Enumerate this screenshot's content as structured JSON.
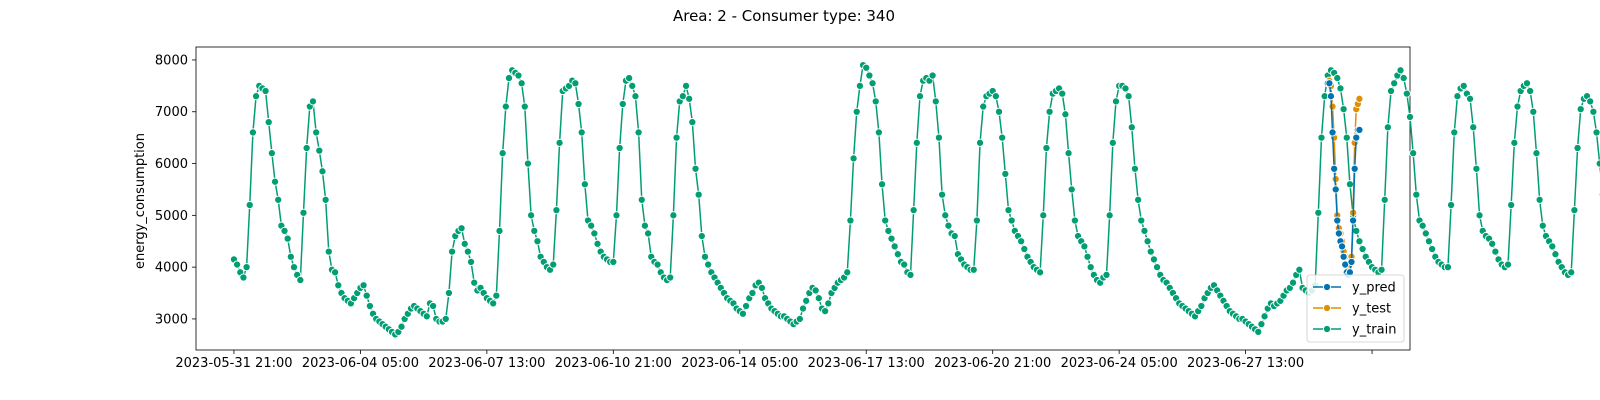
{
  "chart_data": {
    "type": "line",
    "title": "Area: 2 - Consumer type: 340",
    "xlabel": "",
    "ylabel": "energy_consumption",
    "ylim": [
      2400,
      8250
    ],
    "yticks": [
      3000,
      4000,
      5000,
      6000,
      7000,
      8000
    ],
    "xlim_hours": [
      -24,
      744
    ],
    "x_start": "2023-05-31 21:00",
    "x_unit": "hours since x_start",
    "xticks": [
      {
        "hour": 0,
        "label": "2023-05-31 21:00"
      },
      {
        "hour": 80,
        "label": "2023-06-04 05:00"
      },
      {
        "hour": 160,
        "label": "2023-06-07 13:00"
      },
      {
        "hour": 240,
        "label": "2023-06-10 21:00"
      },
      {
        "hour": 320,
        "label": "2023-06-14 05:00"
      },
      {
        "hour": 400,
        "label": "2023-06-17 13:00"
      },
      {
        "hour": 480,
        "label": "2023-06-20 21:00"
      },
      {
        "hour": 560,
        "label": "2023-06-24 05:00"
      },
      {
        "hour": 640,
        "label": "2023-06-27 13:00"
      },
      {
        "hour": 720,
        "label": ""
      }
    ],
    "grid": false,
    "legend": {
      "position": "lower-right",
      "entries": [
        "y_pred",
        "y_test",
        "y_train"
      ]
    },
    "series": [
      {
        "name": "y_train",
        "color": "#029e73",
        "x_start": 0,
        "x_step": 2,
        "values": [
          4150,
          4050,
          3900,
          3800,
          4000,
          5200,
          6600,
          7300,
          7500,
          7450,
          7400,
          6800,
          6200,
          5650,
          5300,
          4800,
          4700,
          4550,
          4200,
          4000,
          3850,
          3750,
          5050,
          6300,
          7100,
          7200,
          6600,
          6250,
          5850,
          5300,
          4300,
          3950,
          3900,
          3650,
          3500,
          3400,
          3350,
          3300,
          3400,
          3500,
          3600,
          3650,
          3450,
          3250,
          3100,
          3000,
          2950,
          2900,
          2850,
          2800,
          2750,
          2700,
          2750,
          2850,
          3000,
          3100,
          3200,
          3250,
          3200,
          3150,
          3100,
          3050,
          3300,
          3250,
          3000,
          2950,
          2950,
          3000,
          3500,
          4300,
          4600,
          4700,
          4750,
          4450,
          4300,
          4100,
          3700,
          3550,
          3600,
          3500,
          3400,
          3350,
          3300,
          3450,
          4700,
          6200,
          7100,
          7650,
          7800,
          7750,
          7700,
          7550,
          7100,
          6000,
          5000,
          4700,
          4500,
          4200,
          4100,
          4000,
          3950,
          4050,
          5100,
          6400,
          7400,
          7450,
          7500,
          7600,
          7550,
          7150,
          6600,
          5600,
          4900,
          4800,
          4650,
          4450,
          4300,
          4200,
          4150,
          4100,
          4100,
          5000,
          6300,
          7150,
          7600,
          7650,
          7500,
          7300,
          6600,
          5300,
          4800,
          4650,
          4200,
          4100,
          4050,
          3900,
          3800,
          3750,
          3800,
          5000,
          6500,
          7200,
          7300,
          7500,
          7250,
          6800,
          5900,
          5400,
          4600,
          4200,
          4050,
          3900,
          3800,
          3700,
          3600,
          3500,
          3400,
          3350,
          3300,
          3200,
          3150,
          3100,
          3250,
          3400,
          3500,
          3650,
          3700,
          3600,
          3400,
          3300,
          3200,
          3150,
          3100,
          3050,
          3050,
          3000,
          2950,
          2900,
          2950,
          3000,
          3200,
          3350,
          3500,
          3600,
          3550,
          3400,
          3200,
          3150,
          3300,
          3500,
          3600,
          3700,
          3750,
          3800,
          3900,
          4900,
          6100,
          7000,
          7500,
          7900,
          7850,
          7700,
          7550,
          7200,
          6600,
          5600,
          4900,
          4700,
          4550,
          4400,
          4250,
          4100,
          4050,
          3900,
          3850,
          5100,
          6400,
          7300,
          7600,
          7650,
          7600,
          7700,
          7200,
          6500,
          5400,
          5000,
          4800,
          4650,
          4600,
          4250,
          4150,
          4050,
          4000,
          3950,
          3950,
          4900,
          6400,
          7100,
          7300,
          7350,
          7400,
          7300,
          7000,
          6500,
          5800,
          5100,
          4900,
          4700,
          4600,
          4500,
          4350,
          4200,
          4100,
          4000,
          3950,
          3900,
          5000,
          6300,
          7000,
          7350,
          7400,
          7450,
          7350,
          6950,
          6200,
          5500,
          4900,
          4600,
          4500,
          4400,
          4200,
          4000,
          3850,
          3750,
          3700,
          3800,
          3850,
          5000,
          6400,
          7200,
          7500,
          7500,
          7450,
          7300,
          6700,
          5900,
          5300,
          4900,
          4700,
          4500,
          4300,
          4150,
          4000,
          3850,
          3750,
          3700,
          3600,
          3500,
          3400,
          3300,
          3250,
          3200,
          3150,
          3100,
          3050,
          3150,
          3250,
          3400,
          3500,
          3600,
          3650,
          3550,
          3450,
          3350,
          3250,
          3150,
          3100,
          3050,
          3000,
          3000,
          2950,
          2900,
          2850,
          2800,
          2750,
          2900,
          3050,
          3200,
          3300,
          3250,
          3300,
          3350,
          3450,
          3550,
          3600,
          3700,
          3850,
          3950,
          3600,
          3550,
          3500,
          3550,
          3650,
          5050,
          6500,
          7300,
          7700,
          7800,
          7750,
          7650,
          7450,
          7050,
          6500,
          5600,
          5000,
          4700,
          4500,
          4350,
          4200,
          4100,
          4000,
          3950,
          3900,
          3950,
          5300,
          6700,
          7400,
          7550,
          7700,
          7800,
          7650,
          7350,
          6900,
          6200,
          5400,
          4900,
          4800,
          4650,
          4500,
          4350,
          4200,
          4100,
          4050,
          4000,
          4000,
          5200,
          6600,
          7300,
          7450,
          7500,
          7350,
          7250,
          6700,
          5900,
          5000,
          4700,
          4600,
          4550,
          4450,
          4300,
          4150,
          4050,
          4000,
          4050,
          5200,
          6400,
          7100,
          7400,
          7500,
          7550,
          7400,
          7000,
          6200,
          5300,
          4800,
          4600,
          4500,
          4400,
          4250,
          4100,
          4000,
          3900,
          3850,
          3900,
          5100,
          6300,
          7050,
          7250,
          7300,
          7200,
          7000,
          6600,
          6000,
          5400,
          4800,
          4400,
          4200,
          4050,
          3950,
          3850,
          3750,
          3700,
          3650,
          3600,
          3550,
          3500,
          3450,
          3400,
          3350,
          3300,
          3350,
          3450,
          3550,
          3650,
          3700,
          3600,
          3550,
          3500,
          3450,
          3400,
          3350,
          3300,
          3250,
          3200,
          3150,
          3100,
          3050,
          3000,
          2950,
          2850,
          2800,
          2850,
          2950,
          3100,
          3300,
          3450,
          3550,
          3650,
          3700,
          3750,
          3800,
          3900,
          4000,
          4100,
          4250,
          3800,
          3850,
          3900,
          4000,
          4100,
          5150,
          6400,
          7100,
          7500,
          7700,
          7800,
          7900,
          7950,
          7700,
          7200,
          6200,
          5400,
          4900,
          4800,
          4600,
          4450,
          4300,
          4200,
          4100,
          4050,
          4000,
          4050,
          5250,
          6600,
          7200,
          7350,
          7450,
          7500,
          7400,
          7150,
          6600,
          5700,
          4900,
          4700,
          4550,
          4400,
          4250,
          4100,
          3950,
          3850,
          3700,
          3650,
          3900,
          5050,
          6400,
          7000,
          7150,
          7250,
          7300,
          7100,
          6700,
          6000,
          5100,
          4700,
          4550,
          4450,
          4300,
          4150,
          4050,
          3950,
          3900,
          3850,
          4000,
          5100,
          6500,
          7300,
          7500,
          7550
        ]
      },
      {
        "name": "y_test",
        "color": "#de8f05",
        "x_start": 692,
        "x_step": 1,
        "values": [
          7550,
          7600,
          7500,
          7100,
          6500,
          5700,
          5000,
          4750,
          4650,
          4500,
          4300,
          4200,
          4050,
          4000,
          4050,
          4200,
          5050,
          6400,
          7050,
          7150,
          7250
        ]
      },
      {
        "name": "y_pred",
        "color": "#0173b2",
        "x_start": 692,
        "x_step": 1,
        "values": [
          7550,
          7550,
          7300,
          6600,
          5900,
          5500,
          4900,
          4650,
          4500,
          4400,
          4200,
          4050,
          3900,
          3850,
          3900,
          4100,
          4900,
          5900,
          6500,
          6650,
          6650
        ]
      }
    ]
  }
}
